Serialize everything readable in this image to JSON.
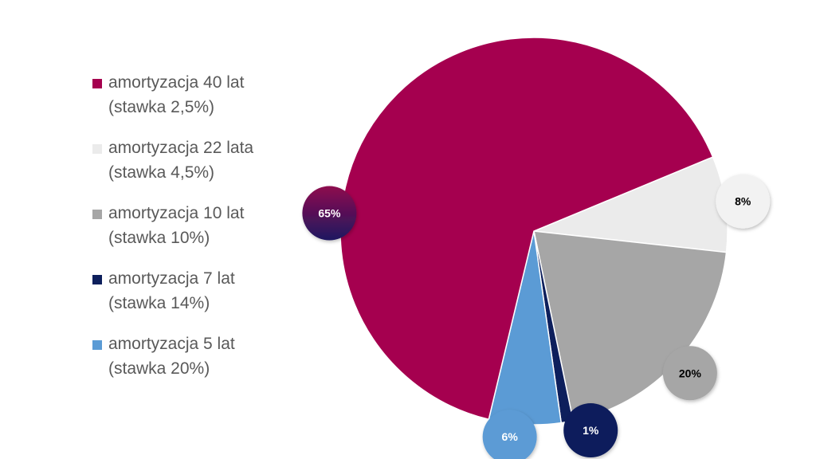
{
  "chart_data": {
    "type": "pie",
    "title": "",
    "categories": [
      "amortyzacja 40 lat (stawka 2,5%)",
      "amortyzacja 22 lata (stawka 4,5%)",
      "amortyzacja 10 lat (stawka 10%)",
      "amortyzacja 7 lat (stawka 14%)",
      "amortyzacja 5 lat (stawka 20%)"
    ],
    "values": [
      65,
      8,
      20,
      1,
      6
    ],
    "data_labels": [
      "65%",
      "8%",
      "20%",
      "1%",
      "6%"
    ],
    "colors": [
      "#A5004F",
      "#EBEBEB",
      "#A6A6A6",
      "#0D1F5C",
      "#5B9BD5"
    ],
    "legend_placement": "left",
    "legend": [
      {
        "line1": "amortyzacja 40 lat",
        "line2": "(stawka 2,5%)",
        "color": "#A5004F"
      },
      {
        "line1": "amortyzacja 22 lata",
        "line2": "(stawka 4,5%)",
        "color": "#EBEBEB"
      },
      {
        "line1": "amortyzacja 10 lat",
        "line2": "(stawka 10%)",
        "color": "#A6A6A6"
      },
      {
        "line1": "amortyzacja 7 lat",
        "line2": "(stawka 14%)",
        "color": "#0D1F5C"
      },
      {
        "line1": "amortyzacja 5 lat",
        "line2": "(stawka 20%)",
        "color": "#5B9BD5"
      }
    ],
    "label_colors": [
      "#3A1060",
      "#F2F2F2",
      "#A6A6A6",
      "#0D1F5C",
      "#5B9BD5"
    ],
    "label_text_colors": [
      "#FFFFFF",
      "#000000",
      "#000000",
      "#FFFFFF",
      "#FFFFFF"
    ]
  }
}
